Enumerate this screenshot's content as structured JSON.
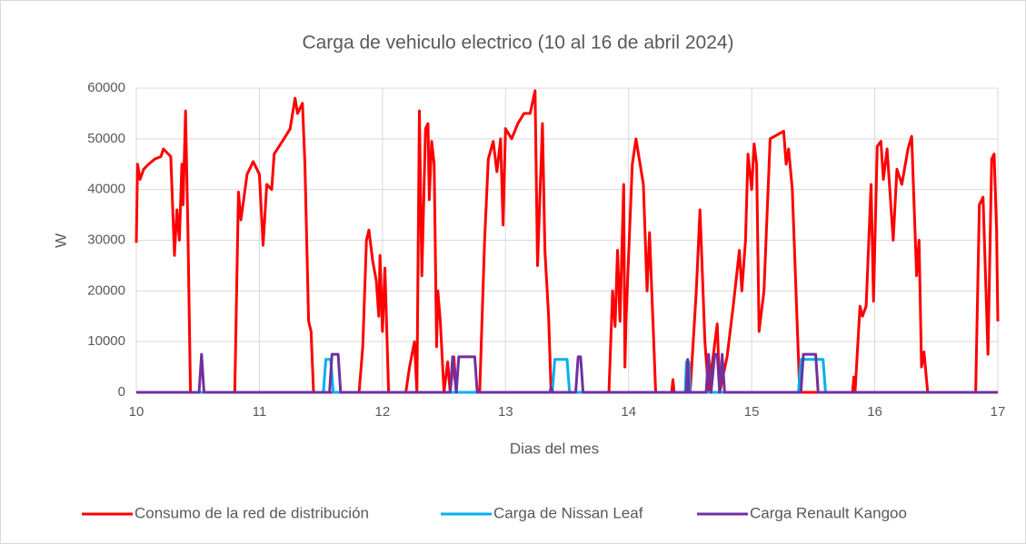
{
  "chart_data": {
    "type": "line",
    "title": "Carga de vehiculo electrico (10 al 16 de abril 2024)",
    "x_label": "Dias del mes",
    "y_label": "W",
    "xlim": [
      10,
      17
    ],
    "xticks": [
      10,
      11,
      12,
      13,
      14,
      15,
      16,
      17
    ],
    "ylim": [
      0,
      60000
    ],
    "yticks": [
      0,
      10000,
      20000,
      30000,
      40000,
      50000,
      60000
    ],
    "grid": true,
    "legend": "bottom",
    "series": [
      {
        "name": "Consumo de la red de distribución",
        "color": "#ff0000",
        "x": [
          10,
          10.01,
          10.03,
          10.06,
          10.1,
          10.15,
          10.2,
          10.22,
          10.28,
          10.31,
          10.33,
          10.35,
          10.37,
          10.38,
          10.4,
          10.42,
          10.44,
          10.8,
          10.83,
          10.85,
          10.9,
          10.95,
          11,
          11.03,
          11.06,
          11.1,
          11.12,
          11.2,
          11.25,
          11.29,
          11.31,
          11.35,
          11.37,
          11.4,
          11.42,
          11.44,
          11.81,
          11.84,
          11.87,
          11.89,
          11.92,
          11.95,
          11.97,
          11.98,
          12,
          12.02,
          12.05,
          12.19,
          12.22,
          12.26,
          12.28,
          12.3,
          12.32,
          12.35,
          12.37,
          12.38,
          12.4,
          12.42,
          12.44,
          12.45,
          12.47,
          12.5,
          12.53,
          12.55,
          12.58,
          12.6,
          12.79,
          12.83,
          12.86,
          12.9,
          12.93,
          12.96,
          12.98,
          13,
          13.05,
          13.1,
          13.15,
          13.2,
          13.24,
          13.26,
          13.3,
          13.32,
          13.35,
          13.37,
          13.84,
          13.87,
          13.89,
          13.91,
          13.93,
          13.96,
          13.97,
          13.98,
          14.03,
          14.06,
          14.12,
          14.15,
          14.17,
          14.22,
          14.35,
          14.36,
          14.37,
          14.5,
          14.55,
          14.58,
          14.62,
          14.65,
          14.72,
          14.74,
          14.8,
          14.85,
          14.9,
          14.92,
          14.95,
          14.97,
          15,
          15.02,
          15.04,
          15.06,
          15.1,
          15.15,
          15.26,
          15.28,
          15.3,
          15.33,
          15.39,
          15.82,
          15.83,
          15.84,
          15.88,
          15.9,
          15.93,
          15.97,
          15.99,
          16.02,
          16.05,
          16.07,
          16.1,
          16.15,
          16.18,
          16.22,
          16.27,
          16.3,
          16.34,
          16.36,
          16.38,
          16.4,
          16.43,
          16.82,
          16.85,
          16.88,
          16.92,
          16.95,
          16.97,
          16.99,
          17
        ],
        "values": [
          29500,
          45000,
          42000,
          44000,
          45000,
          46000,
          46500,
          48000,
          46500,
          27000,
          36000,
          30000,
          45000,
          37000,
          55500,
          31000,
          0,
          0,
          39500,
          34000,
          43000,
          45500,
          43000,
          29000,
          41000,
          40000,
          47000,
          50000,
          52000,
          58000,
          55000,
          57000,
          45000,
          14000,
          12000,
          0,
          0,
          9000,
          30000,
          32000,
          26000,
          22000,
          15000,
          27000,
          12000,
          24500,
          0,
          0,
          5000,
          10000,
          0,
          55500,
          23000,
          52000,
          53000,
          38000,
          49500,
          45000,
          9000,
          20000,
          14000,
          0,
          6000,
          0,
          7000,
          0,
          0,
          30000,
          46000,
          49500,
          43500,
          50000,
          33000,
          52000,
          50000,
          53000,
          55000,
          55000,
          59500,
          25000,
          53000,
          28000,
          15000,
          0,
          0,
          20000,
          13000,
          28000,
          14000,
          41000,
          5000,
          15000,
          45000,
          50000,
          41000,
          20000,
          31500,
          0,
          0,
          2500,
          0,
          0,
          20000,
          36000,
          10000,
          0,
          13500,
          0,
          7000,
          17000,
          28000,
          20000,
          30000,
          47000,
          40000,
          49000,
          45000,
          12000,
          20000,
          50000,
          51500,
          45000,
          48000,
          40000,
          0,
          0,
          3000,
          0,
          17000,
          15000,
          17000,
          41000,
          18000,
          48500,
          49500,
          42000,
          48000,
          30000,
          44000,
          41000,
          48000,
          50500,
          23000,
          30000,
          5000,
          8000,
          0,
          0,
          37000,
          38500,
          7500,
          46000,
          47000,
          32000,
          14000
        ]
      },
      {
        "name": "Carga de Nissan Leaf",
        "color": "#00b0f0",
        "x": [
          10,
          11.52,
          11.54,
          11.58,
          11.6,
          13.38,
          13.4,
          13.5,
          13.52,
          14.46,
          14.47,
          14.49,
          14.5,
          15.38,
          15.4,
          15.58,
          15.6,
          17
        ],
        "values": [
          0,
          0,
          6500,
          6500,
          0,
          0,
          6500,
          6500,
          0,
          0,
          6000,
          6000,
          0,
          0,
          6500,
          6500,
          0,
          0
        ]
      },
      {
        "name": "Carga Renault Kangoo",
        "color": "#7030a0",
        "x": [
          10,
          10.51,
          10.53,
          10.55,
          11.57,
          11.59,
          11.64,
          11.66,
          12.55,
          12.57,
          12.6,
          12.62,
          12.75,
          12.77,
          13.36,
          13.37,
          13.38,
          13.57,
          13.59,
          13.61,
          13.63,
          14.47,
          14.48,
          14.49,
          14.63,
          14.65,
          14.67,
          14.7,
          14.72,
          14.74,
          14.76,
          14.78,
          15.4,
          15.42,
          15.52,
          15.54,
          17
        ],
        "values": [
          0,
          0,
          7500,
          0,
          0,
          7500,
          7500,
          0,
          0,
          7000,
          0,
          7000,
          7000,
          0,
          0,
          1000,
          0,
          0,
          7000,
          7000,
          0,
          0,
          6500,
          0,
          0,
          7500,
          0,
          7500,
          7500,
          0,
          7500,
          0,
          0,
          7500,
          7500,
          0,
          0
        ]
      }
    ]
  }
}
